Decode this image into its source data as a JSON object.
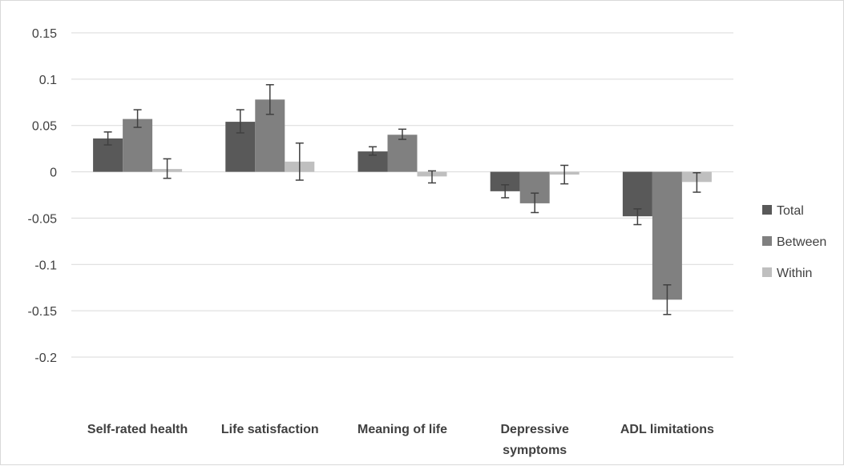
{
  "chart_data": {
    "type": "bar",
    "categories": [
      [
        "Self-rated health"
      ],
      [
        "Life satisfaction"
      ],
      [
        "Meaning of life"
      ],
      [
        "Depressive",
        "symptoms"
      ],
      [
        "ADL limitations"
      ]
    ],
    "series": [
      {
        "name": "Total",
        "color": "#595959",
        "values": [
          0.036,
          0.054,
          0.022,
          -0.021,
          -0.048
        ],
        "error_low": [
          0.029,
          0.042,
          0.018,
          -0.028,
          -0.057
        ],
        "error_high": [
          0.043,
          0.067,
          0.027,
          -0.014,
          -0.04
        ]
      },
      {
        "name": "Between",
        "color": "#808080",
        "values": [
          0.057,
          0.078,
          0.04,
          -0.034,
          -0.138
        ],
        "error_low": [
          0.048,
          0.062,
          0.035,
          -0.044,
          -0.154
        ],
        "error_high": [
          0.067,
          0.094,
          0.046,
          -0.023,
          -0.122
        ]
      },
      {
        "name": "Within",
        "color": "#bfbfbf",
        "values": [
          0.003,
          0.011,
          -0.005,
          -0.003,
          -0.011
        ],
        "error_low": [
          -0.007,
          -0.009,
          -0.012,
          -0.013,
          -0.022
        ],
        "error_high": [
          0.014,
          0.031,
          0.001,
          0.007,
          -0.001
        ]
      }
    ],
    "y_ticks": [
      "0.15",
      "0.1",
      "0.05",
      "0",
      "-0.05",
      "-0.1",
      "-0.15",
      "-0.2"
    ],
    "ylim": [
      -0.2,
      0.15
    ],
    "grid": true,
    "legend_position": "right",
    "title": "",
    "xlabel": "",
    "ylabel": ""
  }
}
